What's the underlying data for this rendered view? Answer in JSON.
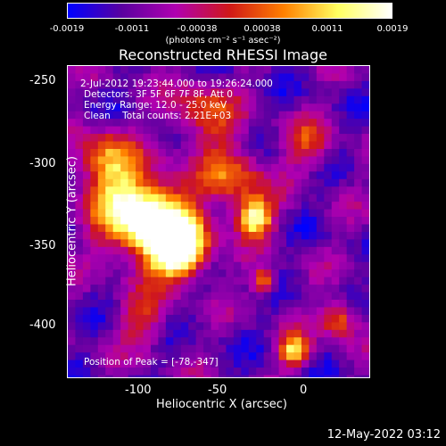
{
  "colorbar": {
    "ticks": [
      "-0.0019",
      "-0.0011",
      "-0.00038",
      "0.00038",
      "0.0011",
      "0.0019"
    ],
    "units": "(photons cm⁻² s⁻¹ asec⁻²)"
  },
  "title": "Reconstructed RHESSI Image",
  "info": {
    "time": "2-Jul-2012 19:23:44.000 to 19:26:24.000",
    "detectors": "Detectors: 3F 5F 6F 7F 8F, Att 0",
    "energy": "Energy Range: 12.0 - 25.0 keV",
    "clean": "Clean    Total counts: 2.21E+03",
    "peak": "Position of Peak = [-78,-347]"
  },
  "axes": {
    "xlabel": "Heliocentric X (arcsec)",
    "ylabel": "Heliocentric Y (arcsec)",
    "xticks": [
      "-100",
      "-50",
      "0"
    ],
    "yticks": [
      "-250",
      "-300",
      "-350",
      "-400"
    ]
  },
  "chart_data": {
    "type": "heatmap",
    "title": "Reconstructed RHESSI Image",
    "xlabel": "Heliocentric X (arcsec)",
    "ylabel": "Heliocentric Y (arcsec)",
    "xlim": [
      -145,
      40
    ],
    "ylim": [
      -430,
      -240
    ],
    "xticks": [
      -100,
      -50,
      0
    ],
    "yticks": [
      -250,
      -300,
      -350,
      -400
    ],
    "colorbar_range": [
      -0.0019,
      0.0019
    ],
    "peak_position": [
      -78,
      -347
    ],
    "colormap": [
      "#0000ff",
      "#5a00a0",
      "#b000b0",
      "#d01818",
      "#ff8000",
      "#ffff60",
      "#ffffff"
    ]
  },
  "footer": {
    "date": "12-May-2022 03:12"
  }
}
